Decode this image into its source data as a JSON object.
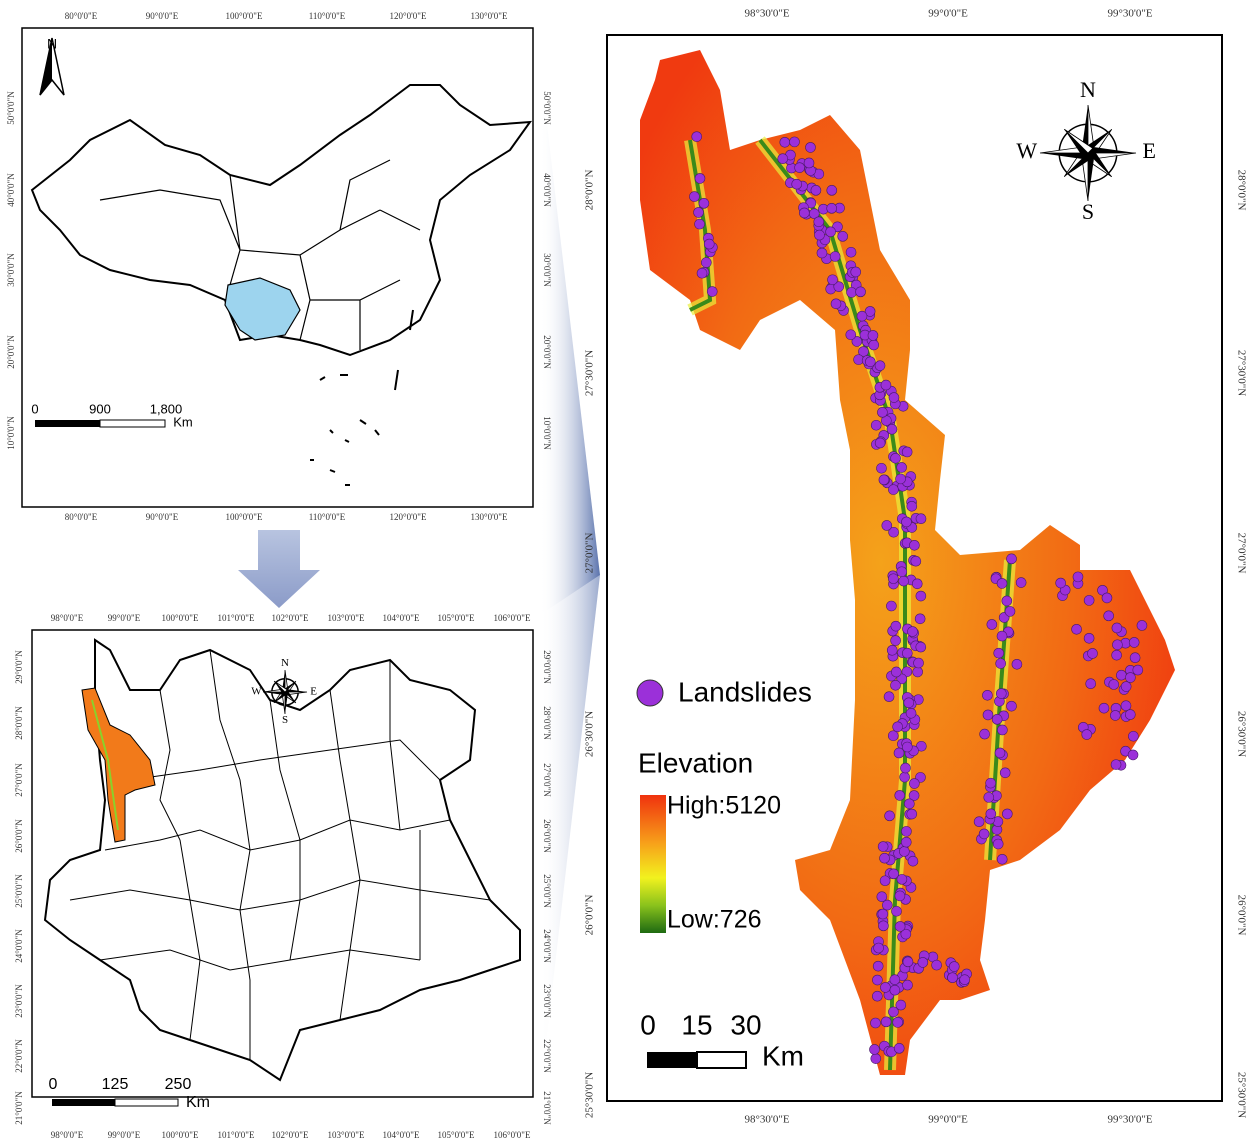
{
  "china_map": {
    "lon_labels": [
      "80°0'0\"E",
      "90°0'0\"E",
      "100°0'0\"E",
      "110°0'0\"E",
      "120°0'0\"E",
      "130°0'0\"E"
    ],
    "lat_labels": [
      "50°0'0\"N",
      "40°0'0\"N",
      "30°0'0\"N",
      "20°0'0\"N",
      "10°0'0\"N"
    ],
    "north": "N",
    "scale": [
      "0",
      "900",
      "1,800"
    ],
    "scale_unit": "Km"
  },
  "yunnan_map": {
    "lon_labels": [
      "98°0'0\"E",
      "99°0'0\"E",
      "100°0'0\"E",
      "101°0'0\"E",
      "102°0'0\"E",
      "103°0'0\"E",
      "104°0'0\"E",
      "105°0'0\"E",
      "106°0'0\"E"
    ],
    "lat_labels": [
      "29°0'0\"N",
      "28°0'0\"N",
      "27°0'0\"N",
      "26°0'0\"N",
      "25°0'0\"N",
      "24°0'0\"N",
      "23°0'0\"N",
      "22°0'0\"N",
      "21°0'0\"N"
    ],
    "compass": [
      "N",
      "S",
      "W",
      "E"
    ],
    "scale": [
      "0",
      "125",
      "250"
    ],
    "scale_unit": "Km"
  },
  "study_map": {
    "lon_labels": [
      "98°30'0\"E",
      "99°0'0\"E",
      "99°30'0\"E"
    ],
    "lat_labels": [
      "28°0'0\"N",
      "27°30'0\"N",
      "27°0'0\"N",
      "26°30'0\"N",
      "26°0'0\"N",
      "25°30'0\"N"
    ],
    "compass": [
      "N",
      "S",
      "W",
      "E"
    ],
    "legend": {
      "landslides": "Landslides",
      "elevation": "Elevation",
      "high": "High:5120",
      "low": "Low:726"
    },
    "scale": [
      "0",
      "15",
      "30"
    ],
    "scale_unit": "Km"
  }
}
